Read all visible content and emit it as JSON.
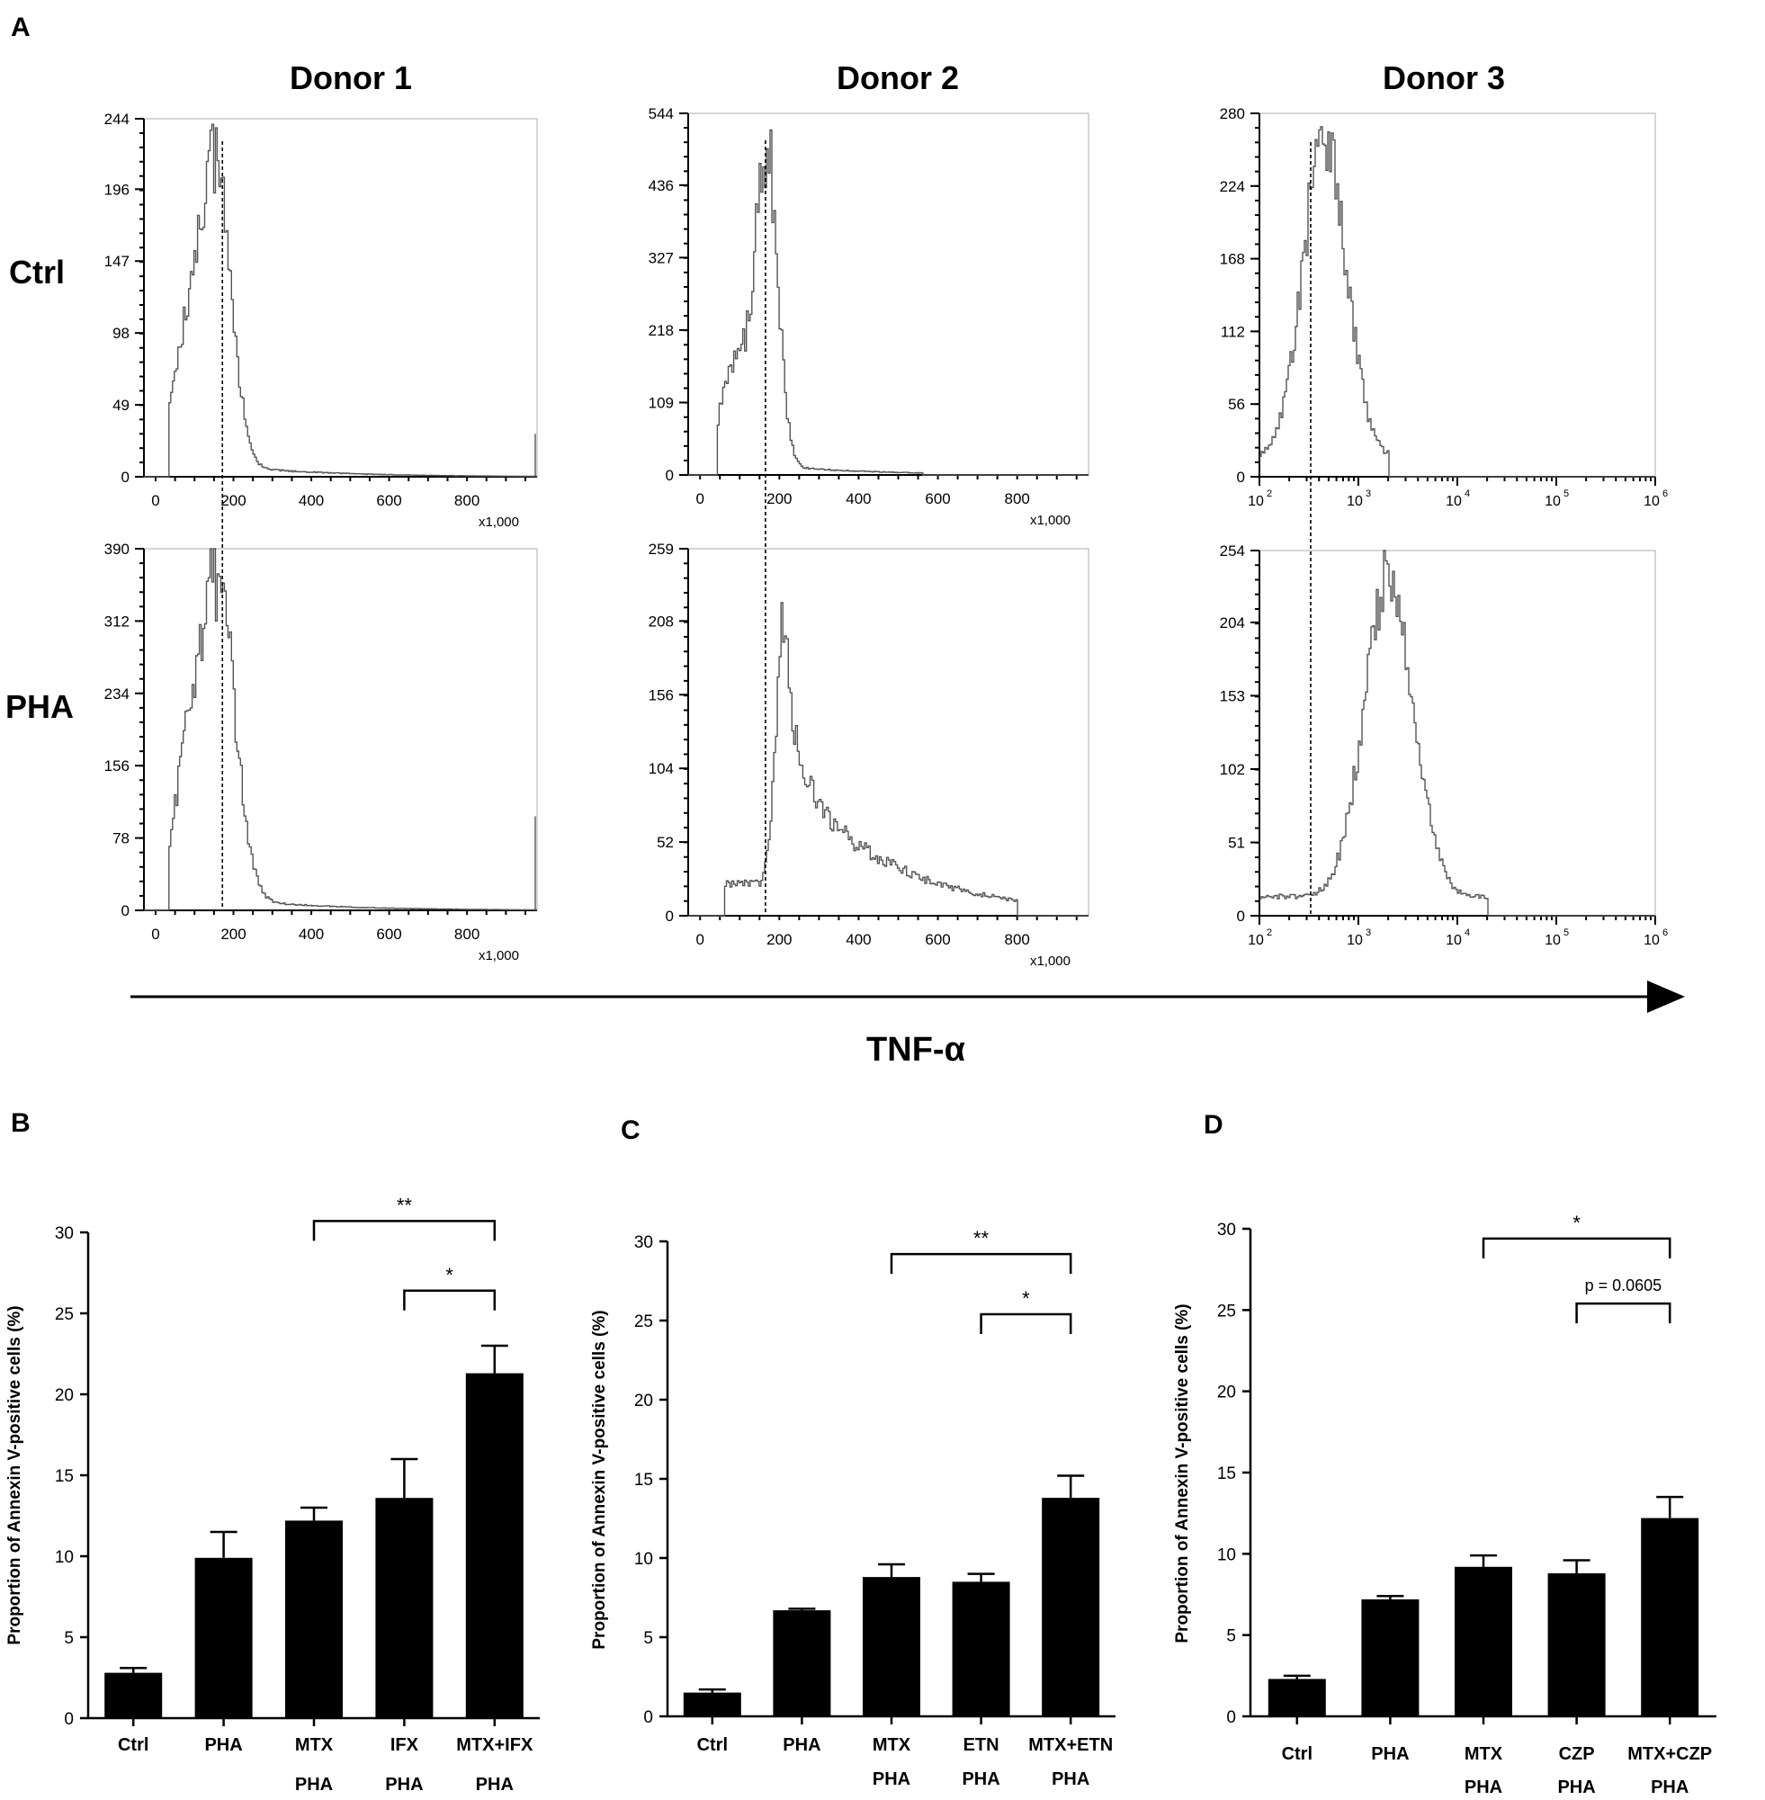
{
  "panel_a": {
    "letter": "A",
    "donors": [
      "Donor 1",
      "Donor 2",
      "Donor 3"
    ],
    "rows": [
      "Ctrl",
      "PHA"
    ],
    "x_axis_label": "TNF-α",
    "linear_multiplier": "x1,000"
  },
  "panel_b": {
    "letter": "B"
  },
  "panel_c": {
    "letter": "C"
  },
  "panel_d": {
    "letter": "D"
  },
  "chart_data": [
    {
      "id": "A-d1-ctrl",
      "type": "histogram",
      "title": "Donor 1 Ctrl",
      "xscale": "linear",
      "xlim": [
        -30,
        980
      ],
      "xticks": [
        0,
        200,
        400,
        600,
        800
      ],
      "xtick_labels": [
        "0",
        "200",
        "400",
        "600",
        "800"
      ],
      "x_multiplier": "x1,000",
      "ylim": [
        0,
        244
      ],
      "yticks": [
        0,
        49,
        98,
        147,
        196,
        244
      ],
      "marker_x": 130,
      "shape": {
        "kind": "ctrl_linear",
        "peak": 150,
        "peak_y": 215,
        "width": 40,
        "tail": 0.04,
        "start": 30
      }
    },
    {
      "id": "A-d1-pha",
      "type": "histogram",
      "title": "Donor 1 PHA",
      "xscale": "linear",
      "xlim": [
        -30,
        980
      ],
      "xticks": [
        0,
        200,
        400,
        600,
        800
      ],
      "xtick_labels": [
        "0",
        "200",
        "400",
        "600",
        "800"
      ],
      "x_multiplier": "x1,000",
      "ylim": [
        0,
        390
      ],
      "yticks": [
        0,
        78,
        156,
        234,
        312,
        390
      ],
      "marker_x": 130,
      "shape": {
        "kind": "ctrl_linear",
        "peak": 155,
        "peak_y": 350,
        "width": 45,
        "tail": 0.04,
        "start": 30
      }
    },
    {
      "id": "A-d2-ctrl",
      "type": "histogram",
      "title": "Donor 2 Ctrl",
      "xscale": "linear",
      "xlim": [
        -30,
        980
      ],
      "xticks": [
        0,
        200,
        400,
        600,
        800
      ],
      "xtick_labels": [
        "0",
        "200",
        "400",
        "600",
        "800"
      ],
      "x_multiplier": "x1,000",
      "ylim": [
        0,
        544
      ],
      "yticks": [
        0,
        109,
        218,
        327,
        436,
        544
      ],
      "marker_x": 165,
      "shape": {
        "kind": "ctrl_linear",
        "peak": 165,
        "peak_y": 490,
        "width": 28,
        "tail": 0.03,
        "start": 40,
        "end": 560
      }
    },
    {
      "id": "A-d2-pha",
      "type": "histogram",
      "title": "Donor 2 PHA",
      "xscale": "linear",
      "xlim": [
        -30,
        980
      ],
      "xticks": [
        0,
        200,
        400,
        600,
        800
      ],
      "xtick_labels": [
        "0",
        "200",
        "400",
        "600",
        "800"
      ],
      "x_multiplier": "x1,000",
      "ylim": [
        0,
        259
      ],
      "yticks": [
        0,
        52,
        104,
        156,
        208,
        259
      ],
      "marker_x": 165,
      "shape": {
        "kind": "skewed",
        "peak": 205,
        "peak_y": 230,
        "start": 60,
        "end": 800
      }
    },
    {
      "id": "A-d3-ctrl",
      "type": "histogram",
      "title": "Donor 3 Ctrl",
      "xscale": "log",
      "xlim": [
        2,
        6
      ],
      "xticks": [
        2,
        3,
        4,
        5,
        6
      ],
      "xtick_labels": [
        "10",
        "10",
        "10",
        "10",
        "10"
      ],
      "xtick_exps": [
        "2",
        "3",
        "4",
        "5",
        "6"
      ],
      "ylim": [
        0,
        280
      ],
      "yticks": [
        0,
        56,
        112,
        168,
        224,
        280
      ],
      "marker_x": 2.7,
      "shape": {
        "kind": "lognormal",
        "center": 2.65,
        "sigma": 0.22,
        "peak_y": 245,
        "start": 2.0,
        "end": 3.3
      }
    },
    {
      "id": "A-d3-pha",
      "type": "histogram",
      "title": "Donor 3 PHA",
      "xscale": "log",
      "xlim": [
        2,
        6
      ],
      "xticks": [
        2,
        3,
        4,
        5,
        6
      ],
      "xtick_labels": [
        "10",
        "10",
        "10",
        "10",
        "10"
      ],
      "xtick_exps": [
        "2",
        "3",
        "4",
        "5",
        "6"
      ],
      "ylim": [
        0,
        254
      ],
      "yticks": [
        0,
        51,
        102,
        153,
        204,
        254
      ],
      "marker_x": 2.7,
      "shape": {
        "kind": "lognormal",
        "center": 3.3,
        "sigma": 0.25,
        "peak_y": 222,
        "start": 2.0,
        "end": 4.3
      }
    },
    {
      "id": "B",
      "type": "bar",
      "ylabel": "Proportion of Annexin V-positive cells (%)",
      "ylim": [
        0,
        30
      ],
      "yticks": [
        0,
        5,
        10,
        15,
        20,
        25,
        30
      ],
      "categories": [
        [
          "Ctrl",
          ""
        ],
        [
          "PHA",
          ""
        ],
        [
          "MTX",
          "PHA"
        ],
        [
          "IFX",
          "PHA"
        ],
        [
          "MTX+IFX",
          "PHA"
        ]
      ],
      "values": [
        2.8,
        9.9,
        12.2,
        13.6,
        21.3
      ],
      "errors": [
        0.3,
        1.6,
        0.8,
        2.4,
        1.7
      ],
      "significance": [
        {
          "from": 2,
          "to": 4,
          "label": "**",
          "y": 30.7
        },
        {
          "from": 3,
          "to": 4,
          "label": "*",
          "y": 26.4
        }
      ]
    },
    {
      "id": "C",
      "type": "bar",
      "ylabel": "Proportion of Annexin V-positive cells (%)",
      "ylim": [
        0,
        30
      ],
      "yticks": [
        0,
        5,
        10,
        15,
        20,
        25,
        30
      ],
      "categories": [
        [
          "Ctrl",
          ""
        ],
        [
          "PHA",
          ""
        ],
        [
          "MTX",
          "PHA"
        ],
        [
          "ETN",
          "PHA"
        ],
        [
          "MTX+ETN",
          "PHA"
        ]
      ],
      "values": [
        1.5,
        6.7,
        8.8,
        8.5,
        13.8
      ],
      "errors": [
        0.2,
        0.1,
        0.8,
        0.5,
        1.4
      ],
      "significance": [
        {
          "from": 2,
          "to": 4,
          "label": "**",
          "y": 29.2
        },
        {
          "from": 3,
          "to": 4,
          "label": "*",
          "y": 25.4
        }
      ]
    },
    {
      "id": "D",
      "type": "bar",
      "ylabel": "Proportion of Annexin V-positive cells (%)",
      "ylim": [
        0,
        30
      ],
      "yticks": [
        0,
        5,
        10,
        15,
        20,
        25,
        30
      ],
      "categories": [
        [
          "Ctrl",
          ""
        ],
        [
          "PHA",
          ""
        ],
        [
          "MTX",
          "PHA"
        ],
        [
          "CZP",
          "PHA"
        ],
        [
          "MTX+CZP",
          "PHA"
        ]
      ],
      "values": [
        2.3,
        7.2,
        9.2,
        8.8,
        12.2
      ],
      "errors": [
        0.2,
        0.2,
        0.7,
        0.8,
        1.3
      ],
      "significance": [
        {
          "from": 2,
          "to": 4,
          "label": "*",
          "y": 29.4
        },
        {
          "from": 3,
          "to": 4,
          "label": "p = 0.0605",
          "y": 25.4
        }
      ]
    }
  ]
}
